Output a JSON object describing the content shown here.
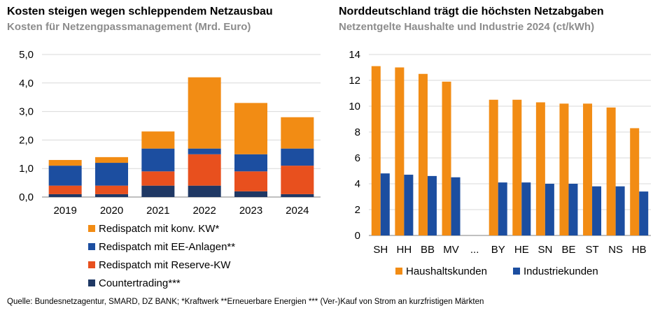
{
  "chart_data": [
    {
      "type": "bar",
      "stacked": true,
      "title": "Kosten steigen wegen schleppendem Netzausbau",
      "subtitle": "Kosten für Netzengpassmanagement (Mrd. Euro)",
      "categories": [
        "2019",
        "2020",
        "2021",
        "2022",
        "2023",
        "2024"
      ],
      "series": [
        {
          "name": "Countertrading***",
          "color": "#1f3864",
          "values": [
            0.1,
            0.1,
            0.4,
            0.4,
            0.2,
            0.1
          ]
        },
        {
          "name": "Redispatch mit Reserve-KW",
          "color": "#e8501e",
          "values": [
            0.3,
            0.3,
            0.5,
            1.1,
            0.7,
            1.0
          ]
        },
        {
          "name": "Redispatch mit EE-Anlagen**",
          "color": "#1c4ea0",
          "values": [
            0.7,
            0.8,
            0.8,
            0.2,
            0.6,
            0.6
          ]
        },
        {
          "name": "Redispatch mit konv. KW*",
          "color": "#f28c14",
          "values": [
            0.2,
            0.2,
            0.6,
            2.5,
            1.8,
            1.1
          ]
        }
      ],
      "legend_order": [
        3,
        2,
        1,
        0
      ],
      "ylim": [
        0,
        5
      ],
      "yticks": [
        "0,0",
        "1,0",
        "2,0",
        "3,0",
        "4,0",
        "5,0"
      ],
      "legend": "bottom",
      "grid": true
    },
    {
      "type": "bar",
      "title": "Norddeutschland trägt die höchsten Netzabgaben",
      "subtitle": "Netzentgelte Haushalte und Industrie 2024 (ct/kWh)",
      "categories": [
        "SH",
        "HH",
        "BB",
        "MV",
        "...",
        "BY",
        "HE",
        "SN",
        "BE",
        "ST",
        "NS",
        "HB"
      ],
      "series": [
        {
          "name": "Haushaltskunden",
          "color": "#f28c14",
          "values": [
            13.1,
            13.0,
            12.5,
            11.9,
            null,
            10.5,
            10.5,
            10.3,
            10.2,
            10.2,
            9.9,
            8.3
          ]
        },
        {
          "name": "Industriekunden",
          "color": "#1c4ea0",
          "values": [
            4.8,
            4.7,
            4.6,
            4.5,
            null,
            4.1,
            4.1,
            4.0,
            4.0,
            3.8,
            3.8,
            3.4
          ]
        }
      ],
      "ylim": [
        0,
        14
      ],
      "yticks": [
        "0",
        "2",
        "4",
        "6",
        "8",
        "10",
        "12",
        "14"
      ],
      "legend": "bottom",
      "grid": true
    }
  ],
  "source": "Quelle: Bundesnetzagentur, SMARD, DZ BANK; *Kraftwerk **Erneuerbare Energien *** (Ver-)Kauf von Strom an kurzfristigen Märkten"
}
